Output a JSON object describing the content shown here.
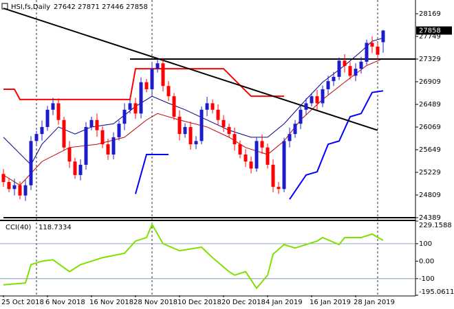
{
  "chart_data": {
    "type": "candlestick",
    "title": "HSI,fs,Daily",
    "categories": [
      "25 Oct 2018",
      null,
      null,
      null,
      null,
      null,
      null,
      null,
      "6 Nov 2018",
      null,
      null,
      null,
      null,
      null,
      null,
      null,
      "16 Nov 2018",
      null,
      null,
      null,
      null,
      null,
      null,
      null,
      "28 Nov 2018",
      null,
      null,
      null,
      null,
      null,
      null,
      null,
      "10 Dec 2018",
      null,
      null,
      null,
      null,
      null,
      null,
      null,
      "20 Dec 2018",
      null,
      null,
      null,
      null,
      null,
      null,
      null,
      "4 Jan 2019",
      null,
      null,
      null,
      null,
      null,
      null,
      null,
      "16 Jan 2019",
      null,
      null,
      null,
      null,
      null,
      null,
      null,
      "28 Jan 2019",
      null,
      null,
      null,
      null,
      null
    ],
    "open": [
      25200,
      25050,
      24920,
      24990,
      24800,
      24990,
      25810,
      25940,
      26070,
      26390,
      26510,
      26200,
      25690,
      25430,
      25180,
      25370,
      26070,
      26200,
      26010,
      25750,
      25560,
      25880,
      26130,
      26390,
      26510,
      26320,
      26900,
      26770,
      27150,
      27250,
      26830,
      26640,
      26260,
      25940,
      26070,
      25750,
      25810,
      26390,
      26510,
      26390,
      26200,
      26070,
      25940,
      25750,
      25560,
      25430,
      25300,
      25810,
      25690,
      25370,
      24960,
      24920,
      25810,
      25940,
      26130,
      26390,
      26510,
      26640,
      26510,
      26770,
      26920,
      27000,
      27300,
      27200,
      27020,
      27150,
      27280,
      27630,
      27560,
      27642
    ],
    "high": [
      25290,
      25110,
      25110,
      25060,
      25090,
      25900,
      26000,
      26190,
      26460,
      26610,
      26600,
      26260,
      25810,
      25500,
      25470,
      26160,
      26260,
      26320,
      26080,
      25850,
      25970,
      26190,
      26510,
      26580,
      26610,
      26990,
      26960,
      27270,
      27320,
      27350,
      26920,
      26700,
      26380,
      26140,
      26170,
      25900,
      26450,
      26630,
      26580,
      26490,
      26290,
      26130,
      26060,
      25820,
      25660,
      25520,
      25870,
      25930,
      25760,
      25470,
      25050,
      25870,
      26060,
      26200,
      26490,
      26600,
      26700,
      26760,
      26840,
      27020,
      27090,
      27360,
      27420,
      27270,
      27250,
      27370,
      27690,
      27750,
      27630,
      27871
    ],
    "low": [
      24960,
      24860,
      24800,
      24730,
      24700,
      24900,
      25750,
      25820,
      26000,
      26290,
      26110,
      25630,
      25310,
      25110,
      25080,
      25280,
      26010,
      25890,
      25680,
      25460,
      25470,
      25820,
      26010,
      26320,
      26220,
      26230,
      26710,
      26650,
      27080,
      26730,
      26550,
      26200,
      25820,
      25870,
      25650,
      25660,
      25750,
      26270,
      26320,
      26100,
      25980,
      25880,
      25630,
      25490,
      25330,
      25210,
      25240,
      25570,
      25300,
      24860,
      24830,
      24860,
      25690,
      25870,
      26030,
      26300,
      26450,
      26390,
      26440,
      26670,
      26830,
      26940,
      27080,
      26950,
      26920,
      27060,
      27220,
      27440,
      27340,
      27446
    ],
    "close": [
      25050,
      24920,
      24990,
      24800,
      24990,
      25810,
      25940,
      26070,
      26390,
      26510,
      26200,
      25690,
      25430,
      25180,
      25370,
      26070,
      26200,
      26010,
      25750,
      25560,
      25880,
      26130,
      26390,
      26510,
      26320,
      26900,
      26770,
      27150,
      27250,
      26830,
      26640,
      26260,
      25940,
      26070,
      25750,
      25810,
      26390,
      26510,
      26390,
      26200,
      26070,
      25940,
      25750,
      25560,
      25430,
      25300,
      25810,
      25690,
      25370,
      24960,
      24920,
      25810,
      25940,
      26130,
      26390,
      26510,
      26640,
      26510,
      26770,
      26920,
      27000,
      27300,
      27200,
      27020,
      27150,
      27280,
      27630,
      27560,
      27410,
      27858
    ],
    "up_color": "#1c1cc8",
    "down_color": "#ff0000",
    "ylim": [
      24351,
      28424
    ],
    "yticks": [
      28169,
      27749,
      27329,
      26909,
      26489,
      26069,
      25649,
      25229,
      24809,
      24389
    ],
    "overlays": [
      {
        "color": "#00008b",
        "width": 1,
        "x": [
          0,
          5,
          7,
          10,
          13,
          16,
          20,
          24,
          27,
          30,
          33,
          37,
          41,
          45,
          48,
          51,
          55,
          58,
          62,
          65,
          67,
          69
        ],
        "values": [
          25880,
          25370,
          25750,
          26070,
          25940,
          26070,
          26130,
          26450,
          26640,
          26510,
          26390,
          26200,
          26010,
          25880,
          25880,
          26130,
          26580,
          26900,
          27210,
          27470,
          27660,
          27720
        ]
      },
      {
        "color": "#c00000",
        "width": 1,
        "x": [
          0,
          3,
          7,
          12,
          17,
          22,
          26,
          28,
          32,
          37,
          41,
          44,
          48,
          51,
          54,
          58,
          62,
          66,
          69
        ],
        "values": [
          25180,
          24990,
          25430,
          25690,
          25750,
          25880,
          26200,
          26320,
          26200,
          26070,
          25880,
          25690,
          25560,
          25810,
          26200,
          26580,
          26900,
          27210,
          27340
        ]
      },
      {
        "color": "#ff0000",
        "width": 2,
        "x": [
          0,
          2,
          3,
          23,
          24,
          31,
          40,
          45,
          51
        ],
        "values": [
          26770,
          26770,
          26580,
          26580,
          27150,
          27150,
          27150,
          26640,
          26640
        ]
      },
      {
        "color": "#0000ff",
        "width": 2,
        "x": [
          24,
          26,
          30,
          31,
          52,
          55,
          57,
          59,
          61,
          63,
          65,
          67,
          69
        ],
        "values": [
          24830,
          25560,
          25560,
          null,
          24730,
          25180,
          25240,
          25750,
          25810,
          26260,
          26320,
          26710,
          26740
        ]
      },
      {
        "color": "#000000",
        "width": 2,
        "x": [
          0,
          68
        ],
        "values": [
          28270,
          26010
        ]
      },
      {
        "color": "#000000",
        "width": 2,
        "x": [
          23,
          69
        ],
        "values": [
          27329,
          27329
        ]
      },
      {
        "color": "#000000",
        "width": 2,
        "x": [
          0,
          69
        ],
        "values": [
          24389,
          24389
        ]
      }
    ],
    "vlines": [
      6,
      27,
      68
    ],
    "cci": {
      "name": "CCI(40)",
      "color": "#7fe000",
      "x": [
        0,
        4,
        5,
        7,
        9,
        12,
        14,
        18,
        22,
        24,
        26,
        27,
        29,
        32,
        36,
        38,
        41,
        42,
        44,
        46,
        48,
        49,
        51,
        53,
        55,
        57,
        58,
        61,
        62,
        65,
        67,
        69
      ],
      "values": [
        -135,
        -125,
        -20,
        0,
        8,
        -60,
        -20,
        20,
        45,
        115,
        135,
        210,
        100,
        60,
        80,
        20,
        -60,
        -80,
        -60,
        -155,
        -80,
        40,
        95,
        75,
        95,
        115,
        135,
        95,
        135,
        135,
        155,
        118.7334
      ],
      "ylim": [
        -195.0611,
        229.1588
      ],
      "yticks": [
        229.1588,
        100,
        {
          "value": 0,
          "label": "0.00"
        },
        -100,
        -195.0611
      ],
      "levels": [
        100,
        -100
      ]
    }
  }
}
